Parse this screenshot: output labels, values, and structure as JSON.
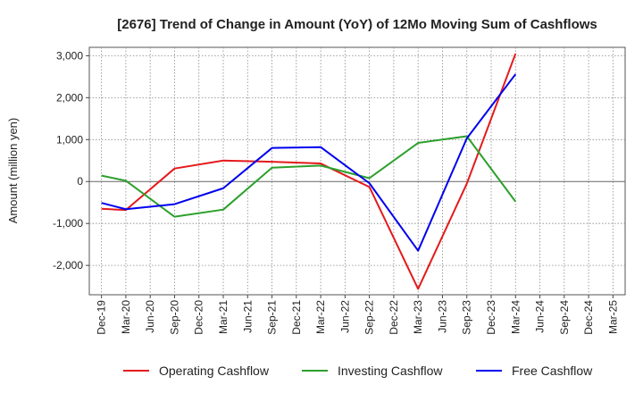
{
  "chart_data": {
    "type": "line",
    "title": "[2676]  Trend of Change in Amount (YoY) of 12Mo Moving Sum of Cashflows",
    "xlabel": "",
    "ylabel": "Amount (million yen)",
    "ylim": [
      -2700,
      3200
    ],
    "yticks": [
      3000,
      2000,
      1000,
      0,
      -1000,
      -2000
    ],
    "ytick_labels": [
      "3,000",
      "2,000",
      "1,000",
      "0",
      "-1,000",
      "-2,000"
    ],
    "grid": true,
    "legend_position": "bottom",
    "categories": [
      "Dec-19",
      "Mar-20",
      "Jun-20",
      "Sep-20",
      "Dec-20",
      "Mar-21",
      "Jun-21",
      "Sep-21",
      "Dec-21",
      "Mar-22",
      "Jun-22",
      "Sep-22",
      "Dec-22",
      "Mar-23",
      "Jun-23",
      "Sep-23",
      "Dec-23",
      "Mar-24",
      "Jun-24",
      "Sep-24",
      "Dec-24",
      "Mar-25"
    ],
    "series": [
      {
        "name": "Operating Cashflow",
        "color": "#e31a1c",
        "values": [
          -650,
          -680,
          null,
          310,
          null,
          500,
          null,
          470,
          null,
          430,
          null,
          -130,
          null,
          -2560,
          null,
          -50,
          null,
          3050,
          null,
          null,
          null,
          null
        ]
      },
      {
        "name": "Investing Cashflow",
        "color": "#2ca02c",
        "values": [
          140,
          20,
          null,
          -840,
          null,
          -670,
          null,
          330,
          null,
          380,
          null,
          80,
          null,
          920,
          null,
          1080,
          null,
          -480,
          null,
          null,
          null,
          null
        ]
      },
      {
        "name": "Free Cashflow",
        "color": "#0000ee",
        "values": [
          -510,
          -660,
          null,
          -540,
          null,
          -160,
          null,
          800,
          null,
          820,
          null,
          -40,
          null,
          -1650,
          null,
          1030,
          null,
          2560,
          null,
          null,
          null,
          null
        ]
      }
    ]
  }
}
